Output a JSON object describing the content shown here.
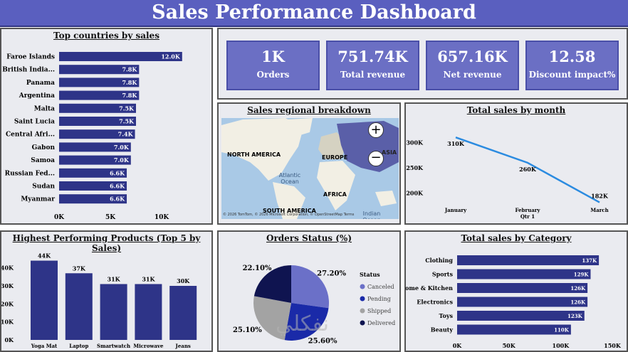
{
  "header": {
    "title": "Sales Performance Dashboard"
  },
  "colors": {
    "bar": "#2e3488",
    "line": "#2b8be0",
    "kpi": "#6b6fc4",
    "header": "#5a5fbf"
  },
  "kpis": [
    {
      "value": "1K",
      "label": "Orders"
    },
    {
      "value": "751.74K",
      "label": "Total revenue"
    },
    {
      "value": "657.16K",
      "label": "Net revenue"
    },
    {
      "value": "12.58",
      "label": "Discount impact%"
    }
  ],
  "map": {
    "title": "Sales regional breakdown",
    "labels": [
      "NORTH AMERICA",
      "EUROPE",
      "ASIA",
      "Atlantic Ocean",
      "AFRICA",
      "SOUTH AMERICA",
      "Indian Ocean"
    ],
    "zoom_in": "+",
    "zoom_out": "−",
    "attribution": "© 2026 TomTom, © 2026 Microsoft Corporation, © OpenStreetMap  Terms"
  },
  "watermark": "نفكلي",
  "chart_data": [
    {
      "type": "bar",
      "orientation": "horizontal",
      "title": "Top countries by sales",
      "categories": [
        "Faroe Islands",
        "British India...",
        "Panama",
        "Argentina",
        "Malta",
        "Saint Lucia",
        "Central Afri...",
        "Gabon",
        "Samoa",
        "Russian Fed...",
        "Sudan",
        "Myanmar"
      ],
      "values": [
        12.0,
        7.8,
        7.8,
        7.8,
        7.5,
        7.5,
        7.4,
        7.0,
        7.0,
        6.6,
        6.6,
        6.6
      ],
      "value_labels": [
        "12.0K",
        "7.8K",
        "7.8K",
        "7.8K",
        "7.5K",
        "7.5K",
        "7.4K",
        "7.0K",
        "7.0K",
        "6.6K",
        "6.6K",
        "6.6K"
      ],
      "xticks": [
        "0K",
        "5K",
        "10K"
      ],
      "xlim": [
        0,
        12.5
      ]
    },
    {
      "type": "line",
      "title": "Total sales by month",
      "categories": [
        "January",
        "February",
        "March"
      ],
      "sub_label": "Qtr 1",
      "values": [
        310,
        260,
        182
      ],
      "value_labels": [
        "310K",
        "260K",
        "182K"
      ],
      "yticks": [
        "200K",
        "250K",
        "300K"
      ],
      "ylim": [
        180,
        320
      ]
    },
    {
      "type": "bar",
      "title": "Highest Performing Products (Top 5 by Sales)",
      "categories": [
        "Yoga Mat",
        "Laptop",
        "Smartwatch",
        "Microwave",
        "Jeans"
      ],
      "values": [
        44,
        37,
        31,
        31,
        30
      ],
      "value_labels": [
        "44K",
        "37K",
        "31K",
        "31K",
        "30K"
      ],
      "yticks": [
        "0K",
        "10K",
        "20K",
        "30K",
        "40K"
      ],
      "ylim": [
        0,
        45
      ]
    },
    {
      "type": "pie",
      "title": "Orders Status (%)",
      "legend_title": "Status",
      "categories": [
        "Canceled",
        "Pending",
        "Shipped",
        "Delivered"
      ],
      "values": [
        27.2,
        25.6,
        25.1,
        22.1
      ],
      "value_labels": [
        "27.20%",
        "25.60%",
        "25.10%",
        "22.10%"
      ],
      "colors": [
        "#6b70c8",
        "#1a2aa8",
        "#a3a3a3",
        "#0f1450"
      ],
      "legend_placement": "right"
    },
    {
      "type": "bar",
      "orientation": "horizontal",
      "title": "Total sales by Category",
      "categories": [
        "Clothing",
        "Sports",
        "Home & Kitchen",
        "Electronics",
        "Toys",
        "Beauty"
      ],
      "values": [
        137,
        129,
        126,
        126,
        123,
        110
      ],
      "value_labels": [
        "137K",
        "129K",
        "126K",
        "126K",
        "123K",
        "110K"
      ],
      "xticks": [
        "0K",
        "50K",
        "100K",
        "150K"
      ],
      "xlim": [
        0,
        150
      ]
    }
  ]
}
